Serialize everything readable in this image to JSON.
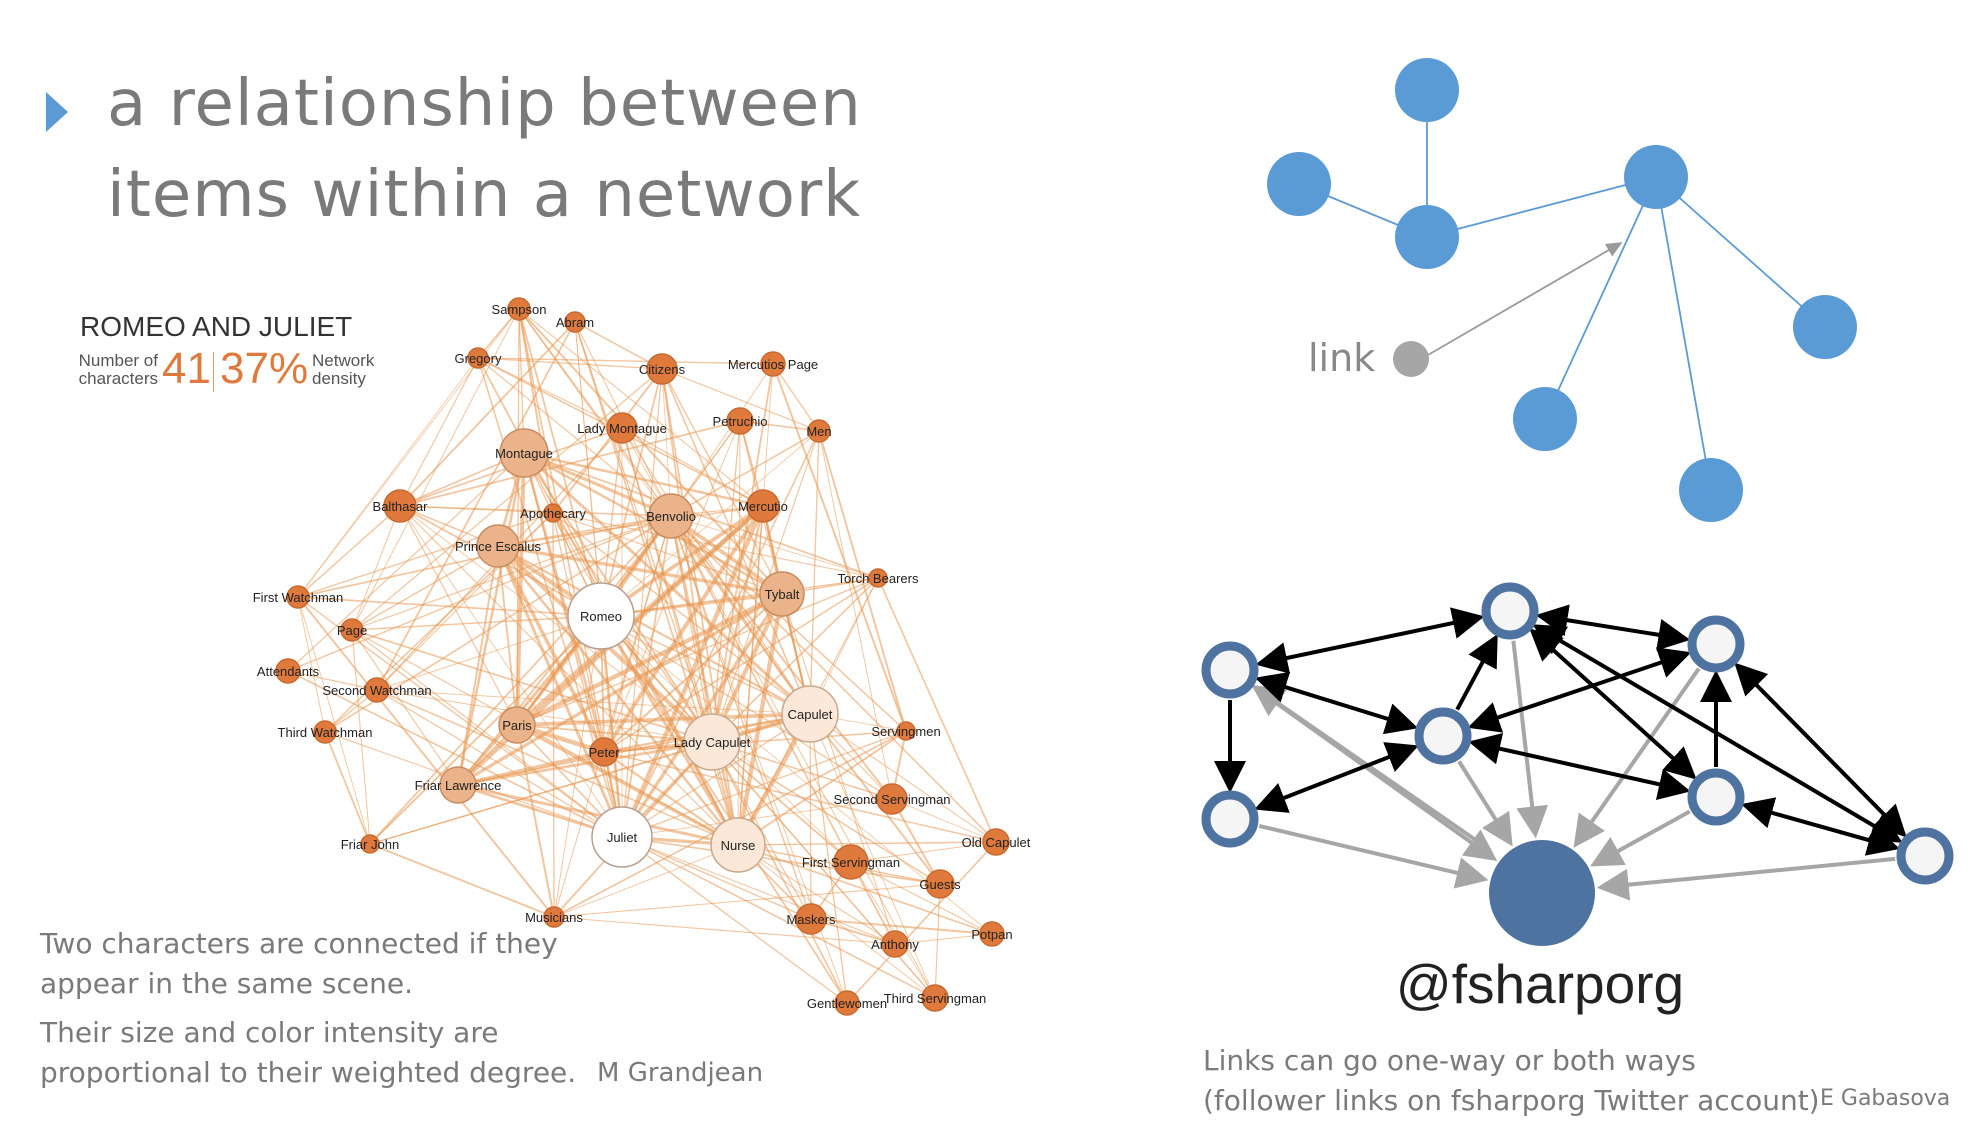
{
  "heading": {
    "marker_icon": "triangle-right-icon",
    "line1": "a relationship between",
    "line2": "items within a network"
  },
  "romeo_juliet": {
    "title": "ROMEO AND JULIET",
    "chars_label_1": "Number of",
    "chars_label_2": "characters",
    "chars_value": "41",
    "density_value": "37%",
    "density_label_1": "Network",
    "density_label_2": "density",
    "colors": {
      "edge": "#e8964f",
      "node_dark": "#e07a3c",
      "node_light": "#fbe8d8",
      "node_white": "#ffffff"
    },
    "nodes": [
      "Sampson",
      "Abram",
      "Gregory",
      "Citizens",
      "Mercutios Page",
      "Lady Montague",
      "Petruchio",
      "Men",
      "Montague",
      "Balthasar",
      "Apothecary",
      "Benvolio",
      "Mercutio",
      "Prince Escalus",
      "Torch Bearers",
      "Romeo",
      "Tybalt",
      "First Watchman",
      "Page",
      "Attendants",
      "Second Watchman",
      "Capulet",
      "Servingmen",
      "Lady Capulet",
      "Paris",
      "Third Watchman",
      "Peter",
      "Friar Lawrence",
      "Second Servingman",
      "Juliet",
      "Nurse",
      "Old Capulet",
      "Friar John",
      "First Servingman",
      "Guests",
      "Musicians",
      "Maskers",
      "Potpan",
      "Anthony",
      "Gentlewomen",
      "Third Servingman"
    ],
    "caption_line1": "Two characters are connected if they",
    "caption_line2": "appear in the same scene.",
    "caption_line3": "Their size and color intensity are",
    "caption_line4": "proportional to their weighted degree.",
    "credit": "M Grandjean"
  },
  "simple_graph": {
    "link_label": "link",
    "colors": {
      "node": "#5b9bd5",
      "edge": "#5b9bd5",
      "link_marker": "#a6a6a6",
      "arrow": "#9a9a9a"
    }
  },
  "follower_graph": {
    "center_label": "@fsharporg",
    "colors": {
      "center": "#4f73a0",
      "ring": "#4f73a0",
      "fill": "#f5f5f5",
      "mutual": "#000000",
      "follow": "#a6a6a6"
    },
    "caption_line1": "Links can go one-way or both ways",
    "caption_line2": "(follower links on fsharporg Twitter account)",
    "credit": "E Gabasova"
  }
}
